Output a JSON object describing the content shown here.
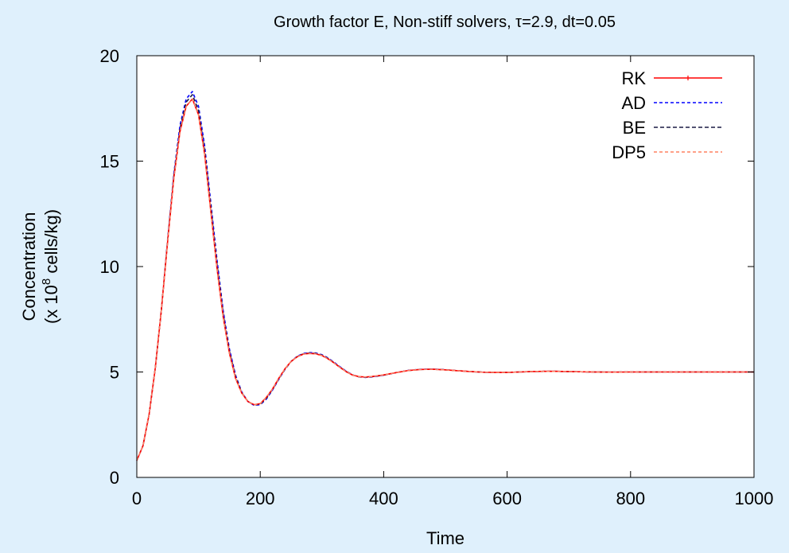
{
  "chart_data": {
    "type": "line",
    "title": "Growth factor E, Non-stiff solvers, τ=2.9, dt=0.05",
    "xlabel": "Time",
    "ylabel_line1": "Concentration",
    "ylabel_line2_prefix": "(x 10",
    "ylabel_line2_exp": "8",
    "ylabel_line2_suffix": " cells/kg)",
    "xlim": [
      0,
      1000
    ],
    "ylim": [
      0,
      20
    ],
    "xticks": [
      0,
      200,
      400,
      600,
      800,
      1000
    ],
    "yticks": [
      0,
      5,
      10,
      15,
      20
    ],
    "xtick_labels": [
      "0",
      "200",
      "400",
      "600",
      "800",
      "1000"
    ],
    "ytick_labels": [
      "0",
      "5",
      "10",
      "15",
      "20"
    ],
    "grid": false,
    "legend_position": "top-right",
    "x": [
      0,
      10,
      20,
      30,
      40,
      50,
      60,
      70,
      80,
      90,
      100,
      110,
      120,
      130,
      140,
      150,
      160,
      170,
      180,
      190,
      200,
      210,
      220,
      230,
      240,
      250,
      260,
      270,
      280,
      290,
      300,
      310,
      320,
      330,
      340,
      350,
      360,
      370,
      380,
      390,
      400,
      420,
      440,
      460,
      480,
      500,
      520,
      540,
      560,
      580,
      600,
      620,
      640,
      660,
      680,
      700,
      720,
      740,
      760,
      780,
      800,
      850,
      900,
      950,
      1000
    ],
    "series": [
      {
        "name": "RK",
        "color": "#ff0000",
        "dash": "",
        "marker": "pipe",
        "values": [
          0.8,
          1.5,
          3.0,
          5.2,
          8.0,
          11.2,
          14.2,
          16.4,
          17.6,
          17.95,
          17.2,
          15.3,
          12.6,
          9.9,
          7.6,
          5.9,
          4.7,
          4.0,
          3.6,
          3.45,
          3.5,
          3.8,
          4.2,
          4.7,
          5.15,
          5.5,
          5.72,
          5.85,
          5.88,
          5.86,
          5.78,
          5.62,
          5.42,
          5.2,
          5.0,
          4.85,
          4.78,
          4.76,
          4.78,
          4.82,
          4.86,
          4.97,
          5.07,
          5.12,
          5.13,
          5.1,
          5.06,
          5.02,
          4.99,
          4.98,
          4.98,
          5.0,
          5.02,
          5.03,
          5.03,
          5.02,
          5.01,
          5.0,
          4.995,
          4.995,
          5.0,
          5.0,
          5.0,
          5.0,
          5.0
        ]
      },
      {
        "name": "AD",
        "color": "#0000ff",
        "dash": "4 3",
        "marker": "",
        "values": [
          0.8,
          1.5,
          3.0,
          5.2,
          8.0,
          11.3,
          14.4,
          16.7,
          17.95,
          18.3,
          17.6,
          15.7,
          13.0,
          10.3,
          7.9,
          6.1,
          4.85,
          4.05,
          3.6,
          3.42,
          3.45,
          3.72,
          4.15,
          4.65,
          5.12,
          5.5,
          5.75,
          5.88,
          5.92,
          5.9,
          5.82,
          5.66,
          5.45,
          5.23,
          5.02,
          4.86,
          4.77,
          4.74,
          4.76,
          4.8,
          4.85,
          4.97,
          5.08,
          5.13,
          5.14,
          5.11,
          5.06,
          5.02,
          4.99,
          4.97,
          4.98,
          5.0,
          5.02,
          5.03,
          5.03,
          5.02,
          5.01,
          5.0,
          4.995,
          4.995,
          5.0,
          5.0,
          5.0,
          5.0,
          5.0
        ]
      },
      {
        "name": "BE",
        "color": "#1a1a44",
        "dash": "5 3",
        "marker": "",
        "values": [
          0.8,
          1.5,
          3.0,
          5.2,
          8.0,
          11.25,
          14.3,
          16.55,
          17.8,
          18.15,
          17.4,
          15.5,
          12.8,
          10.1,
          7.75,
          6.0,
          4.78,
          4.02,
          3.6,
          3.44,
          3.47,
          3.76,
          4.18,
          4.68,
          5.13,
          5.5,
          5.73,
          5.86,
          5.9,
          5.88,
          5.8,
          5.64,
          5.43,
          5.21,
          5.01,
          4.85,
          4.77,
          4.75,
          4.77,
          4.81,
          4.85,
          4.97,
          5.07,
          5.12,
          5.13,
          5.1,
          5.06,
          5.02,
          4.99,
          4.98,
          4.98,
          5.0,
          5.02,
          5.03,
          5.03,
          5.02,
          5.01,
          5.0,
          4.995,
          4.995,
          5.0,
          5.0,
          5.0,
          5.0,
          5.0
        ]
      },
      {
        "name": "DP5",
        "color": "#ff8060",
        "dash": "4 3",
        "marker": "",
        "values": [
          0.8,
          1.5,
          3.0,
          5.2,
          8.0,
          11.2,
          14.2,
          16.4,
          17.6,
          17.95,
          17.2,
          15.3,
          12.6,
          9.9,
          7.6,
          5.9,
          4.7,
          4.0,
          3.6,
          3.45,
          3.5,
          3.8,
          4.2,
          4.7,
          5.15,
          5.5,
          5.72,
          5.85,
          5.88,
          5.86,
          5.78,
          5.62,
          5.42,
          5.2,
          5.0,
          4.85,
          4.78,
          4.76,
          4.78,
          4.82,
          4.86,
          4.97,
          5.07,
          5.12,
          5.13,
          5.1,
          5.06,
          5.02,
          4.99,
          4.98,
          4.98,
          5.0,
          5.02,
          5.03,
          5.03,
          5.02,
          5.01,
          5.0,
          4.995,
          4.995,
          5.0,
          5.0,
          5.0,
          5.0,
          5.0
        ]
      }
    ]
  }
}
